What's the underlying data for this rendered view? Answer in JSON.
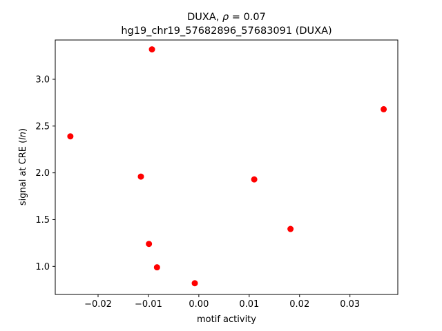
{
  "chart_data": {
    "type": "scatter",
    "title_line1_prefix": "DUXA, ",
    "title_line1_symbol": "ρ",
    "title_line1_suffix": " = 0.07",
    "title_line2": "hg19_chr19_57682896_57683091 (DUXA)",
    "xlabel": "motif activity",
    "ylabel_prefix": "signal at CRE (",
    "ylabel_italic": "ln",
    "ylabel_suffix": ")",
    "xlim": [
      -0.0285,
      0.0395
    ],
    "ylim": [
      0.7,
      3.42
    ],
    "xticks": [
      -0.02,
      -0.01,
      0.0,
      0.01,
      0.02,
      0.03
    ],
    "xtick_labels": [
      "−0.02",
      "−0.01",
      "0.00",
      "0.01",
      "0.02",
      "0.03"
    ],
    "yticks": [
      1.0,
      1.5,
      2.0,
      2.5,
      3.0
    ],
    "ytick_labels": [
      "1.0",
      "1.5",
      "2.0",
      "2.5",
      "3.0"
    ],
    "marker_color": "#ff0000",
    "points": [
      {
        "x": -0.0255,
        "y": 2.39
      },
      {
        "x": -0.0093,
        "y": 3.32
      },
      {
        "x": -0.0115,
        "y": 1.96
      },
      {
        "x": -0.0099,
        "y": 1.24
      },
      {
        "x": -0.0083,
        "y": 0.99
      },
      {
        "x": -0.0008,
        "y": 0.82
      },
      {
        "x": 0.011,
        "y": 1.93
      },
      {
        "x": 0.0182,
        "y": 1.4
      },
      {
        "x": 0.0367,
        "y": 2.68
      }
    ]
  }
}
